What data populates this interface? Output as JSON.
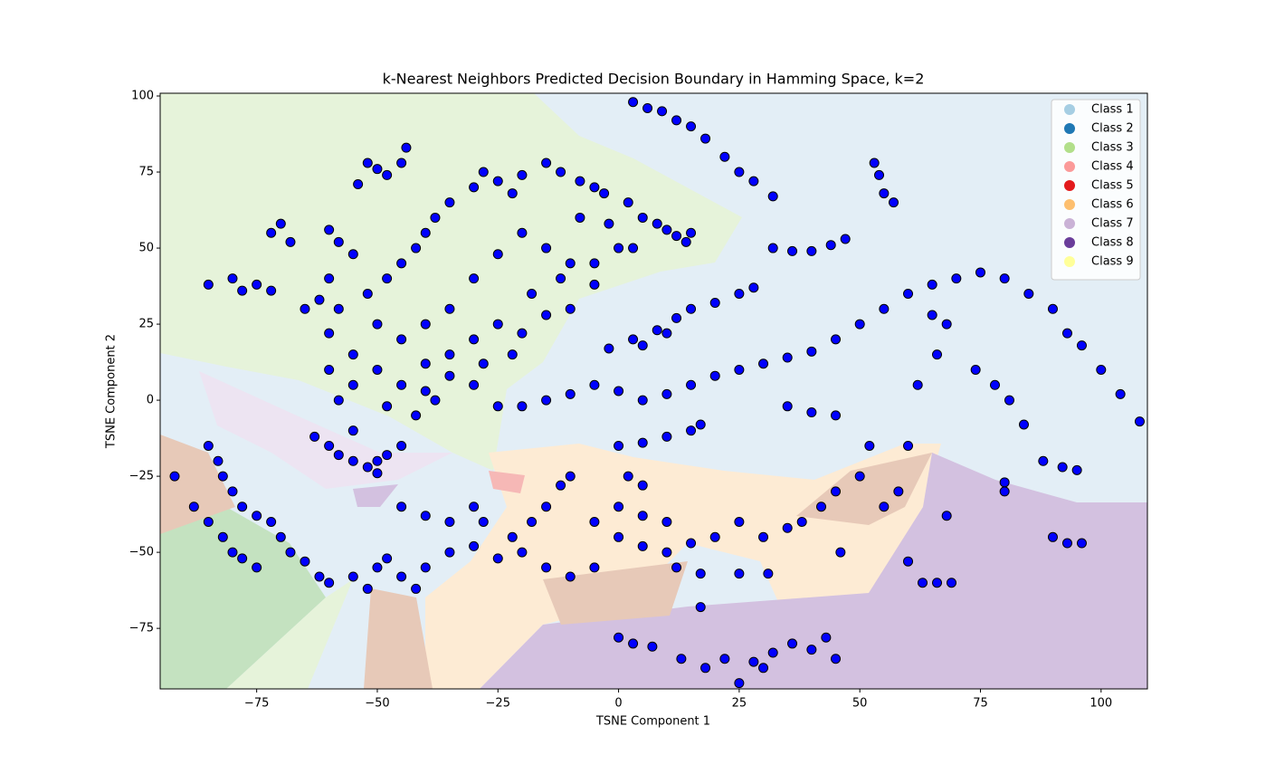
{
  "chart_data": {
    "type": "scatter",
    "title": "k-Nearest Neighbors Predicted Decision Boundary in Hamming Space, k=2",
    "xlabel": "TSNE Component 1",
    "ylabel": "TSNE Component 2",
    "xlim": [
      -95,
      109.6
    ],
    "ylim": [
      -94.9,
      100.9
    ],
    "xticks": [
      {
        "value": -75,
        "label": "−75"
      },
      {
        "value": -50,
        "label": "−50"
      },
      {
        "value": -25,
        "label": "−25"
      },
      0,
      25,
      50,
      75,
      100
    ],
    "yticks": [
      {
        "value": -75,
        "label": "−75"
      },
      {
        "value": -50,
        "label": "−50"
      },
      {
        "value": -25,
        "label": "−25"
      },
      0,
      25,
      50,
      75,
      100
    ],
    "color": "#0000ff",
    "legend_position": "upper right",
    "legend": [
      {
        "name": "Class 1",
        "color": "#a6cee3"
      },
      {
        "name": "Class 2",
        "color": "#1f78b4"
      },
      {
        "name": "Class 3",
        "color": "#b2df8a"
      },
      {
        "name": "Class 4",
        "color": "#fb9a99"
      },
      {
        "name": "Class 5",
        "color": "#e31a1c"
      },
      {
        "name": "Class 6",
        "color": "#fdbf6f"
      },
      {
        "name": "Class 7",
        "color": "#cab2d6"
      },
      {
        "name": "Class 8",
        "color": "#6a3d9a"
      },
      {
        "name": "Class 9",
        "color": "#ffff99"
      }
    ],
    "x": [
      -52,
      -50,
      -48,
      -45,
      -44,
      -54,
      -60,
      -58,
      -55,
      -60,
      -62,
      -58,
      -52,
      -48,
      -45,
      -42,
      -40,
      -38,
      -35,
      -30,
      -28,
      -25,
      -22,
      -20,
      -15,
      -12,
      -8,
      -5,
      -3,
      2,
      5,
      8,
      10,
      12,
      15,
      14,
      -70,
      -72,
      -68,
      -85,
      -80,
      -78,
      -75,
      -72,
      -65,
      -60,
      -55,
      -50,
      -45,
      -40,
      -35,
      -30,
      -25,
      -35,
      -30,
      -25,
      -20,
      -15,
      -10,
      -5,
      -10,
      -15,
      -20,
      -25,
      -30,
      -35,
      -40,
      -45,
      -50,
      -55,
      -60,
      -58,
      -5,
      0,
      -2,
      3,
      -8,
      -12,
      -18,
      -22,
      -28,
      -40,
      -48,
      -42,
      -38,
      -63,
      -60,
      -58,
      -55,
      -52,
      -50,
      -48,
      -45,
      -55,
      -50,
      3,
      6,
      9,
      12,
      15,
      18,
      22,
      25,
      28,
      32,
      53,
      54,
      55,
      57,
      32,
      36,
      40,
      44,
      47,
      -2,
      3,
      8,
      12,
      15,
      20,
      25,
      28,
      10,
      5,
      -20,
      -15,
      -10,
      -5,
      0,
      5,
      10,
      15,
      20,
      25,
      30,
      35,
      40,
      45,
      50,
      55,
      60,
      65,
      70,
      75,
      80,
      85,
      90,
      93,
      96,
      100,
      104,
      108,
      74,
      78,
      81,
      84,
      0,
      5,
      10,
      15,
      17,
      35,
      40,
      45,
      80,
      80,
      88,
      92,
      95,
      90,
      93,
      96,
      60,
      63,
      66,
      69,
      68,
      55,
      58,
      60,
      62,
      66,
      68,
      65,
      52,
      50,
      45,
      42,
      38,
      35,
      30,
      25,
      20,
      15,
      10,
      5,
      0,
      -5,
      -10,
      -15,
      -20,
      -22,
      -18,
      -15,
      -12,
      -10,
      -5,
      0,
      5,
      10,
      2,
      5,
      12,
      17,
      25,
      31,
      17,
      46,
      0,
      3,
      7,
      13,
      18,
      22,
      28,
      32,
      36,
      40,
      43,
      45,
      25,
      30,
      -85,
      -83,
      -82,
      -80,
      -78,
      -75,
      -72,
      -70,
      -68,
      -65,
      -62,
      -60,
      -55,
      -52,
      -50,
      -48,
      -45,
      -42,
      -40,
      -88,
      -85,
      -82,
      -80,
      -78,
      -75,
      -92,
      -45,
      -40,
      -35,
      -30,
      -28,
      -35,
      -30,
      -25
    ],
    "values": [
      78,
      76,
      74,
      78,
      83,
      71,
      56,
      52,
      48,
      40,
      33,
      30,
      35,
      40,
      45,
      50,
      55,
      60,
      65,
      70,
      75,
      72,
      68,
      74,
      78,
      75,
      72,
      70,
      68,
      65,
      60,
      58,
      56,
      54,
      55,
      52,
      58,
      55,
      52,
      38,
      40,
      36,
      38,
      36,
      30,
      22,
      15,
      10,
      5,
      3,
      8,
      5,
      -2,
      15,
      20,
      25,
      22,
      28,
      30,
      38,
      45,
      50,
      55,
      48,
      40,
      30,
      25,
      20,
      25,
      5,
      10,
      0,
      45,
      50,
      58,
      50,
      60,
      40,
      35,
      15,
      12,
      12,
      -2,
      -5,
      0,
      -12,
      -15,
      -18,
      -20,
      -22,
      -20,
      -18,
      -15,
      -10,
      -24,
      98,
      96,
      95,
      92,
      90,
      86,
      80,
      75,
      72,
      67,
      78,
      74,
      68,
      65,
      50,
      49,
      49,
      51,
      53,
      17,
      20,
      23,
      27,
      30,
      32,
      35,
      37,
      22,
      18,
      -2,
      0,
      2,
      5,
      3,
      0,
      2,
      5,
      8,
      10,
      12,
      14,
      16,
      20,
      25,
      30,
      35,
      38,
      40,
      42,
      40,
      35,
      30,
      22,
      18,
      10,
      2,
      -7,
      10,
      5,
      0,
      -8,
      -15,
      -14,
      -12,
      -10,
      -8,
      -2,
      -4,
      -5,
      -27,
      -30,
      -20,
      -22,
      -23,
      -45,
      -47,
      -47,
      -53,
      -60,
      -60,
      -60,
      -38,
      -35,
      -30,
      -15,
      5,
      15,
      25,
      28,
      -15,
      -25,
      -30,
      -35,
      -40,
      -42,
      -45,
      -40,
      -45,
      -47,
      -50,
      -48,
      -45,
      -55,
      -58,
      -55,
      -50,
      -45,
      -40,
      -35,
      -28,
      -25,
      -40,
      -35,
      -38,
      -40,
      -25,
      -28,
      -55,
      -57,
      -57,
      -57,
      -68,
      -50,
      -78,
      -80,
      -81,
      -85,
      -88,
      -85,
      -86,
      -83,
      -80,
      -82,
      -78,
      -85,
      -93,
      -88,
      -15,
      -20,
      -25,
      -30,
      -35,
      -38,
      -40,
      -45,
      -50,
      -53,
      -58,
      -60,
      -58,
      -62,
      -55,
      -52,
      -58,
      -62,
      -55,
      -35,
      -40,
      -45,
      -50,
      -52,
      -55,
      -25,
      -35,
      -38,
      -40,
      -35,
      -40,
      -50,
      -48,
      -52
    ]
  }
}
